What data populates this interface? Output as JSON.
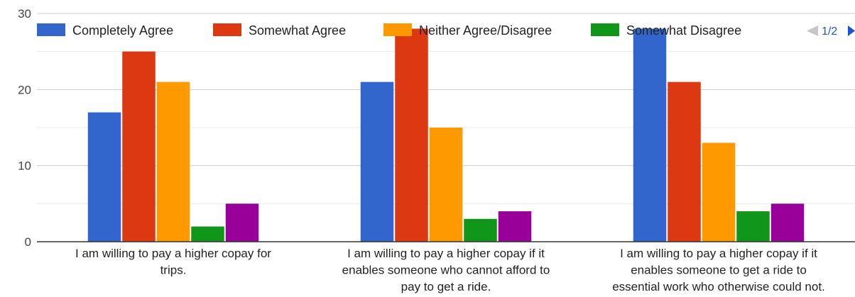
{
  "chart_data": {
    "type": "bar",
    "categories": [
      [
        "I am willing to pay a higher copay for",
        "trips."
      ],
      [
        "I am willing to pay a higher copay if it",
        "enables someone who cannot afford to",
        "pay to get a ride."
      ],
      [
        "I am willing to pay a higher copay if it",
        "enables someone to get a ride to",
        "essential work who otherwise could not."
      ]
    ],
    "series": [
      {
        "name": "Completely Agree",
        "color": "#3366cc",
        "values": [
          17,
          21,
          28
        ]
      },
      {
        "name": "Somewhat Agree",
        "color": "#dc3912",
        "values": [
          25,
          28,
          21
        ]
      },
      {
        "name": "Neither Agree/Disagree",
        "color": "#ff9900",
        "values": [
          21,
          15,
          13
        ]
      },
      {
        "name": "Somewhat Disagree",
        "color": "#109618",
        "values": [
          2,
          3,
          4
        ]
      },
      {
        "name": "",
        "color": "#990099",
        "values": [
          5,
          4,
          5
        ]
      }
    ],
    "ylim": [
      0,
      30
    ],
    "yticks": [
      0,
      10,
      20,
      30
    ],
    "grid": true,
    "legend": {
      "position": "top",
      "page_label": "1/2"
    },
    "title": "",
    "xlabel": "",
    "ylabel": ""
  }
}
